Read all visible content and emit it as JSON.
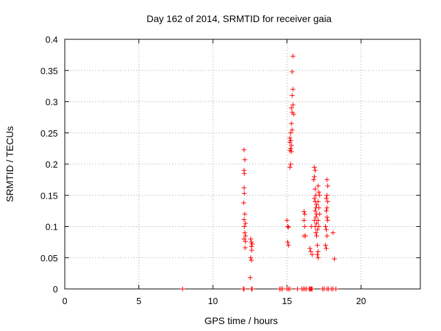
{
  "chart_data": {
    "type": "scatter",
    "title": "Day 162 of 2014, SRMTID for receiver gaia",
    "xlabel": "GPS time / hours",
    "ylabel": "SRMTID / TECUs",
    "xlim": [
      0,
      24
    ],
    "ylim": [
      0,
      0.4
    ],
    "x_ticks": [
      0,
      5,
      10,
      15,
      20
    ],
    "x_tick_labels": [
      "0",
      "5",
      "10",
      "15",
      "20"
    ],
    "y_ticks": [
      0,
      0.05,
      0.1,
      0.15,
      0.2,
      0.25,
      0.3,
      0.35,
      0.4
    ],
    "y_tick_labels": [
      "0",
      "0.05",
      "0.1",
      "0.15",
      "0.2",
      "0.25",
      "0.3",
      "0.35",
      "0.4"
    ],
    "grid": true,
    "marker": "+",
    "color": "#ff0000",
    "series": [
      {
        "name": "SRMTID",
        "points": [
          [
            7.95,
            0
          ],
          [
            12.05,
            0
          ],
          [
            12.1,
            0
          ],
          [
            12.6,
            0
          ],
          [
            12.65,
            0
          ],
          [
            14.5,
            0
          ],
          [
            14.6,
            0
          ],
          [
            14.7,
            0
          ],
          [
            15.0,
            0
          ],
          [
            15.1,
            0
          ],
          [
            15.2,
            0
          ],
          [
            15.7,
            0
          ],
          [
            16.0,
            0
          ],
          [
            16.1,
            0
          ],
          [
            16.2,
            0
          ],
          [
            16.3,
            0
          ],
          [
            16.5,
            0
          ],
          [
            16.55,
            0
          ],
          [
            16.6,
            0
          ],
          [
            16.65,
            0
          ],
          [
            16.7,
            0
          ],
          [
            17.4,
            0
          ],
          [
            17.5,
            0
          ],
          [
            17.7,
            0
          ],
          [
            17.8,
            0
          ],
          [
            18.0,
            0
          ],
          [
            18.1,
            0
          ],
          [
            18.3,
            0
          ],
          [
            12.1,
            0.223
          ],
          [
            12.15,
            0.207
          ],
          [
            12.1,
            0.19
          ],
          [
            12.12,
            0.185
          ],
          [
            12.1,
            0.162
          ],
          [
            12.12,
            0.153
          ],
          [
            12.08,
            0.138
          ],
          [
            12.15,
            0.12
          ],
          [
            12.1,
            0.111
          ],
          [
            12.2,
            0.105
          ],
          [
            12.12,
            0.1
          ],
          [
            12.15,
            0.09
          ],
          [
            12.2,
            0.085
          ],
          [
            12.1,
            0.08
          ],
          [
            12.2,
            0.076
          ],
          [
            12.18,
            0.066
          ],
          [
            12.55,
            0.08
          ],
          [
            12.6,
            0.075
          ],
          [
            12.65,
            0.072
          ],
          [
            12.6,
            0.068
          ],
          [
            12.62,
            0.062
          ],
          [
            12.55,
            0.05
          ],
          [
            12.6,
            0.046
          ],
          [
            12.52,
            0.018
          ],
          [
            15.0,
            0.11
          ],
          [
            15.05,
            0.1
          ],
          [
            15.1,
            0.099
          ],
          [
            15.05,
            0.075
          ],
          [
            15.1,
            0.07
          ],
          [
            15.4,
            0.373
          ],
          [
            15.35,
            0.348
          ],
          [
            15.4,
            0.32
          ],
          [
            15.35,
            0.31
          ],
          [
            15.4,
            0.295
          ],
          [
            15.3,
            0.29
          ],
          [
            15.35,
            0.283
          ],
          [
            15.45,
            0.28
          ],
          [
            15.3,
            0.265
          ],
          [
            15.35,
            0.255
          ],
          [
            15.25,
            0.25
          ],
          [
            15.2,
            0.242
          ],
          [
            15.25,
            0.238
          ],
          [
            15.2,
            0.235
          ],
          [
            15.3,
            0.23
          ],
          [
            15.25,
            0.225
          ],
          [
            15.2,
            0.222
          ],
          [
            15.3,
            0.22
          ],
          [
            15.25,
            0.2
          ],
          [
            15.2,
            0.195
          ],
          [
            16.15,
            0.124
          ],
          [
            16.2,
            0.12
          ],
          [
            16.15,
            0.11
          ],
          [
            16.2,
            0.1
          ],
          [
            16.15,
            0.085
          ],
          [
            16.25,
            0.085
          ],
          [
            16.55,
            0.065
          ],
          [
            16.6,
            0.06
          ],
          [
            16.7,
            0.055
          ],
          [
            16.65,
            0.1
          ],
          [
            16.85,
            0.195
          ],
          [
            16.9,
            0.19
          ],
          [
            16.85,
            0.18
          ],
          [
            16.8,
            0.175
          ],
          [
            16.9,
            0.16
          ],
          [
            16.95,
            0.15
          ],
          [
            16.85,
            0.145
          ],
          [
            16.9,
            0.14
          ],
          [
            17.0,
            0.135
          ],
          [
            16.95,
            0.13
          ],
          [
            16.9,
            0.125
          ],
          [
            17.0,
            0.12
          ],
          [
            16.95,
            0.115
          ],
          [
            16.85,
            0.11
          ],
          [
            17.0,
            0.105
          ],
          [
            16.9,
            0.1
          ],
          [
            17.05,
            0.095
          ],
          [
            16.95,
            0.09
          ],
          [
            17.0,
            0.085
          ],
          [
            17.1,
            0.165
          ],
          [
            17.15,
            0.155
          ],
          [
            17.2,
            0.15
          ],
          [
            17.1,
            0.14
          ],
          [
            17.15,
            0.13
          ],
          [
            17.2,
            0.12
          ],
          [
            17.1,
            0.11
          ],
          [
            17.15,
            0.1
          ],
          [
            17.05,
            0.07
          ],
          [
            17.1,
            0.06
          ],
          [
            17.05,
            0.055
          ],
          [
            17.1,
            0.05
          ],
          [
            17.7,
            0.175
          ],
          [
            17.75,
            0.165
          ],
          [
            17.7,
            0.15
          ],
          [
            17.65,
            0.145
          ],
          [
            17.75,
            0.14
          ],
          [
            17.7,
            0.13
          ],
          [
            17.65,
            0.125
          ],
          [
            17.7,
            0.115
          ],
          [
            17.75,
            0.11
          ],
          [
            17.6,
            0.1
          ],
          [
            17.65,
            0.095
          ],
          [
            17.7,
            0.085
          ],
          [
            17.6,
            0.07
          ],
          [
            17.65,
            0.065
          ],
          [
            18.1,
            0.09
          ],
          [
            18.2,
            0.048
          ]
        ]
      }
    ]
  }
}
